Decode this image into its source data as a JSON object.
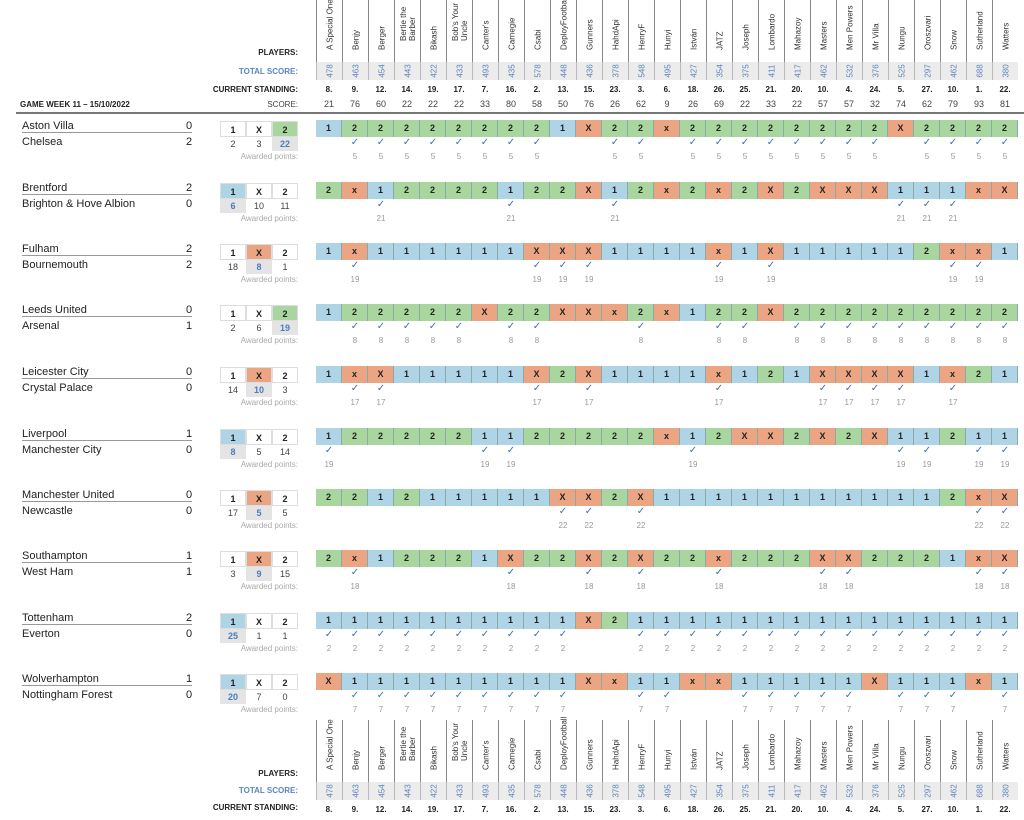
{
  "labels": {
    "players": "PLAYERS:",
    "total_score": "TOTAL SCORE:",
    "current_standing": "CURRENT STANDING:",
    "score": "SCORE:",
    "game_week": "GAME WEEK 11 – 15/10/2022",
    "awarded_points": "Awarded points:",
    "check": "✓"
  },
  "colors": {
    "pick_1": "#aed4e6",
    "pick_2": "#a9d69e",
    "pick_X": "#eba583",
    "total": "#5b86c0"
  },
  "players": [
    {
      "name": "A Special One",
      "total": "478",
      "standing": "8.",
      "score": "21"
    },
    {
      "name": "Benjy",
      "total": "463",
      "standing": "9.",
      "score": "76"
    },
    {
      "name": "Berger",
      "total": "454",
      "standing": "12.",
      "score": "60"
    },
    {
      "name": "Bertie the Barber",
      "total": "443",
      "standing": "14.",
      "score": "22"
    },
    {
      "name": "Bikash",
      "total": "422",
      "standing": "19.",
      "score": "22"
    },
    {
      "name": "Bob's Your Uncle",
      "total": "433",
      "standing": "17.",
      "score": "22"
    },
    {
      "name": "Canter's",
      "total": "493",
      "standing": "7.",
      "score": "33"
    },
    {
      "name": "Carnegie",
      "total": "435",
      "standing": "16.",
      "score": "80"
    },
    {
      "name": "Csabi",
      "total": "578",
      "standing": "2.",
      "score": "58"
    },
    {
      "name": "DeployFootball",
      "total": "448",
      "standing": "13.",
      "score": "50"
    },
    {
      "name": "Gunners",
      "total": "436",
      "standing": "15.",
      "score": "76"
    },
    {
      "name": "HahdApi",
      "total": "378",
      "standing": "23.",
      "score": "26"
    },
    {
      "name": "HenryF",
      "total": "548",
      "standing": "3.",
      "score": "62"
    },
    {
      "name": "Hunyi",
      "total": "495",
      "standing": "6.",
      "score": "9"
    },
    {
      "name": "István",
      "total": "427",
      "standing": "18.",
      "score": "26"
    },
    {
      "name": "JATZ",
      "total": "354",
      "standing": "26.",
      "score": "69"
    },
    {
      "name": "Joseph",
      "total": "375",
      "standing": "25.",
      "score": "22"
    },
    {
      "name": "Lombardo",
      "total": "411",
      "standing": "21.",
      "score": "33"
    },
    {
      "name": "Mahazoy",
      "total": "417",
      "standing": "20.",
      "score": "22"
    },
    {
      "name": "Masters",
      "total": "462",
      "standing": "10.",
      "score": "57"
    },
    {
      "name": "Men Powers",
      "total": "532",
      "standing": "4.",
      "score": "57"
    },
    {
      "name": "Mr Villa",
      "total": "376",
      "standing": "24.",
      "score": "32"
    },
    {
      "name": "Nungu",
      "total": "525",
      "standing": "5.",
      "score": "74"
    },
    {
      "name": "Oroszvari",
      "total": "297",
      "standing": "27.",
      "score": "62"
    },
    {
      "name": "Snow",
      "total": "462",
      "standing": "10.",
      "score": "79"
    },
    {
      "name": "Sutherland",
      "total": "688",
      "standing": "1.",
      "score": "93"
    },
    {
      "name": "Watters",
      "total": "380",
      "standing": "22.",
      "score": "81"
    }
  ],
  "matches": [
    {
      "home": "Aston Villa",
      "away": "Chelsea",
      "home_goals": "0",
      "away_goals": "2",
      "result": "2",
      "counts": {
        "1": "2",
        "X": "3",
        "2": "22"
      },
      "points": "5",
      "picks": [
        "1",
        "2",
        "2",
        "2",
        "2",
        "2",
        "2",
        "2",
        "2",
        "1",
        "X",
        "2",
        "2",
        "x",
        "2",
        "2",
        "2",
        "2",
        "2",
        "2",
        "2",
        "2",
        "X",
        "2",
        "2",
        "2",
        "2"
      ]
    },
    {
      "home": "Brentford",
      "away": "Brighton & Hove Albion",
      "home_goals": "2",
      "away_goals": "0",
      "result": "1",
      "counts": {
        "1": "6",
        "X": "10",
        "2": "11"
      },
      "points": "21",
      "picks": [
        "2",
        "x",
        "1",
        "2",
        "2",
        "2",
        "2",
        "1",
        "2",
        "2",
        "X",
        "1",
        "2",
        "x",
        "2",
        "x",
        "2",
        "X",
        "2",
        "X",
        "X",
        "X",
        "1",
        "1",
        "1",
        "x",
        "X"
      ]
    },
    {
      "home": "Fulham",
      "away": "Bournemouth",
      "home_goals": "2",
      "away_goals": "2",
      "result": "X",
      "counts": {
        "1": "18",
        "X": "8",
        "2": "1"
      },
      "points": "19",
      "picks": [
        "1",
        "x",
        "1",
        "1",
        "1",
        "1",
        "1",
        "1",
        "X",
        "X",
        "X",
        "1",
        "1",
        "1",
        "1",
        "x",
        "1",
        "X",
        "1",
        "1",
        "1",
        "1",
        "1",
        "2",
        "x",
        "x",
        "1"
      ]
    },
    {
      "home": "Leeds United",
      "away": "Arsenal",
      "home_goals": "0",
      "away_goals": "1",
      "result": "2",
      "counts": {
        "1": "2",
        "X": "6",
        "2": "19"
      },
      "points": "8",
      "picks": [
        "1",
        "2",
        "2",
        "2",
        "2",
        "2",
        "X",
        "2",
        "2",
        "X",
        "X",
        "x",
        "2",
        "x",
        "1",
        "2",
        "2",
        "X",
        "2",
        "2",
        "2",
        "2",
        "2",
        "2",
        "2",
        "2",
        "2"
      ]
    },
    {
      "home": "Leicester City",
      "away": "Crystal Palace",
      "home_goals": "0",
      "away_goals": "0",
      "result": "X",
      "counts": {
        "1": "14",
        "X": "10",
        "2": "3"
      },
      "points": "17",
      "picks": [
        "1",
        "x",
        "X",
        "1",
        "1",
        "1",
        "1",
        "1",
        "X",
        "2",
        "X",
        "1",
        "1",
        "1",
        "1",
        "x",
        "1",
        "2",
        "1",
        "X",
        "X",
        "X",
        "X",
        "1",
        "x",
        "2",
        "1"
      ]
    },
    {
      "home": "Liverpool",
      "away": "Manchester City",
      "home_goals": "1",
      "away_goals": "0",
      "result": "1",
      "counts": {
        "1": "8",
        "X": "5",
        "2": "14"
      },
      "points": "19",
      "picks": [
        "1",
        "2",
        "2",
        "2",
        "2",
        "2",
        "1",
        "1",
        "2",
        "2",
        "2",
        "2",
        "2",
        "x",
        "1",
        "2",
        "X",
        "X",
        "2",
        "X",
        "2",
        "X",
        "1",
        "1",
        "2",
        "1",
        "1"
      ]
    },
    {
      "home": "Manchester United",
      "away": "Newcastle",
      "home_goals": "0",
      "away_goals": "0",
      "result": "X",
      "counts": {
        "1": "17",
        "X": "5",
        "2": "5"
      },
      "points": "22",
      "picks": [
        "2",
        "2",
        "1",
        "2",
        "1",
        "1",
        "1",
        "1",
        "1",
        "X",
        "X",
        "2",
        "X",
        "1",
        "1",
        "1",
        "1",
        "1",
        "1",
        "1",
        "1",
        "1",
        "1",
        "1",
        "2",
        "x",
        "X"
      ]
    },
    {
      "home": "Southampton",
      "away": "West Ham",
      "home_goals": "1",
      "away_goals": "1",
      "result": "X",
      "counts": {
        "1": "3",
        "X": "9",
        "2": "15"
      },
      "points": "18",
      "picks": [
        "2",
        "x",
        "1",
        "2",
        "2",
        "2",
        "1",
        "X",
        "2",
        "2",
        "X",
        "2",
        "X",
        "2",
        "2",
        "x",
        "2",
        "2",
        "2",
        "X",
        "X",
        "2",
        "2",
        "2",
        "1",
        "x",
        "X"
      ]
    },
    {
      "home": "Tottenham",
      "away": "Everton",
      "home_goals": "2",
      "away_goals": "0",
      "result": "1",
      "counts": {
        "1": "25",
        "X": "1",
        "2": "1"
      },
      "points": "2",
      "picks": [
        "1",
        "1",
        "1",
        "1",
        "1",
        "1",
        "1",
        "1",
        "1",
        "1",
        "X",
        "2",
        "1",
        "1",
        "1",
        "1",
        "1",
        "1",
        "1",
        "1",
        "1",
        "1",
        "1",
        "1",
        "1",
        "1",
        "1"
      ]
    },
    {
      "home": "Wolverhampton",
      "away": "Nottingham Forest",
      "home_goals": "1",
      "away_goals": "0",
      "result": "1",
      "counts": {
        "1": "20",
        "X": "7",
        "2": "0"
      },
      "points": "7",
      "picks": [
        "X",
        "1",
        "1",
        "1",
        "1",
        "1",
        "1",
        "1",
        "1",
        "1",
        "X",
        "x",
        "1",
        "1",
        "x",
        "x",
        "1",
        "1",
        "1",
        "1",
        "1",
        "X",
        "1",
        "1",
        "1",
        "x",
        "1"
      ]
    }
  ]
}
